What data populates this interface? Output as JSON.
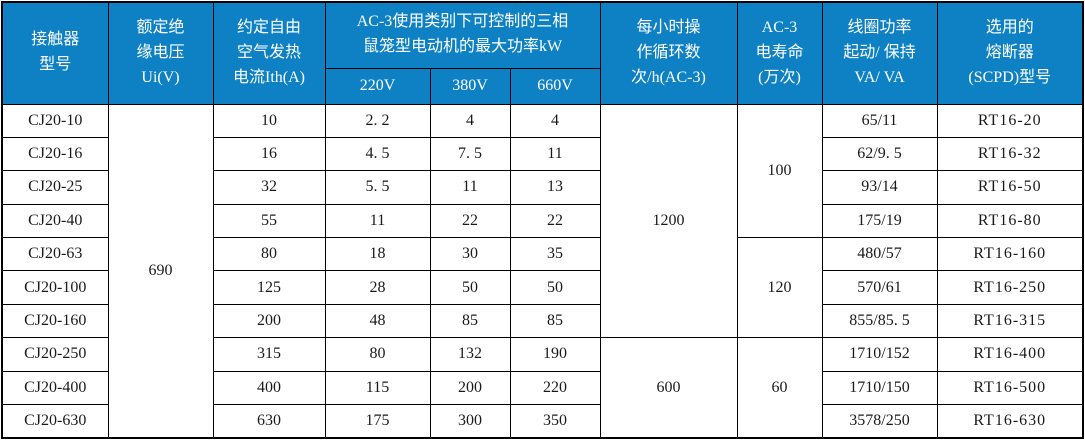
{
  "colors": {
    "header_bg": "#0e81c4",
    "header_text": "#ffffff",
    "grid_line": "#000000",
    "body_text": "#1a1a1a"
  },
  "table": {
    "columns": {
      "model": {
        "label": "接触器\n型号"
      },
      "ui": {
        "label": "额定绝\n缘电压\nUi(V)"
      },
      "ith": {
        "label": "约定自由\n空气发热\n电流Ith(A)"
      },
      "power_group": {
        "label": "AC-3使用类别下可控制的三相\n鼠笼型电动机的最大功率kW",
        "sub": [
          "220V",
          "380V",
          "660V"
        ]
      },
      "cycles": {
        "label": "每小时操\n作循环数\n次/h(AC-3)"
      },
      "life": {
        "label": "AC-3\n电寿命\n(万次)"
      },
      "coil": {
        "label": "线圈功率\n起动/ 保持\nVA/ VA"
      },
      "fuse": {
        "label": "选用的\n熔断器\n(SCPD)型号"
      }
    },
    "rows": [
      {
        "model": "CJ20-10",
        "ith": "10",
        "p220": "2. 2",
        "p380": "4",
        "p660": "4",
        "coil": "65/11",
        "fuse": "RT16-20"
      },
      {
        "model": "CJ20-16",
        "ith": "16",
        "p220": "4. 5",
        "p380": "7. 5",
        "p660": "11",
        "coil": "62/9. 5",
        "fuse": "RT16-32"
      },
      {
        "model": "CJ20-25",
        "ith": "32",
        "p220": "5. 5",
        "p380": "11",
        "p660": "13",
        "coil": "93/14",
        "fuse": "RT16-50"
      },
      {
        "model": "CJ20-40",
        "ith": "55",
        "p220": "11",
        "p380": "22",
        "p660": "22",
        "coil": "175/19",
        "fuse": "RT16-80"
      },
      {
        "model": "CJ20-63",
        "ith": "80",
        "p220": "18",
        "p380": "30",
        "p660": "35",
        "coil": "480/57",
        "fuse": "RT16-160"
      },
      {
        "model": "CJ20-100",
        "ith": "125",
        "p220": "28",
        "p380": "50",
        "p660": "50",
        "coil": "570/61",
        "fuse": "RT16-250"
      },
      {
        "model": "CJ20-160",
        "ith": "200",
        "p220": "48",
        "p380": "85",
        "p660": "85",
        "coil": "855/85. 5",
        "fuse": "RT16-315"
      },
      {
        "model": "CJ20-250",
        "ith": "315",
        "p220": "80",
        "p380": "132",
        "p660": "190",
        "coil": "1710/152",
        "fuse": "RT16-400"
      },
      {
        "model": "CJ20-400",
        "ith": "400",
        "p220": "115",
        "p380": "200",
        "p660": "220",
        "coil": "1710/150",
        "fuse": "RT16-500"
      },
      {
        "model": "CJ20-630",
        "ith": "630",
        "p220": "175",
        "p380": "300",
        "p660": "350",
        "coil": "3578/250",
        "fuse": "RT16-630"
      }
    ],
    "merged": {
      "ui": [
        {
          "start": 0,
          "span": 10,
          "value": "690"
        }
      ],
      "cycles": [
        {
          "start": 0,
          "span": 7,
          "value": "1200"
        },
        {
          "start": 7,
          "span": 3,
          "value": "600"
        }
      ],
      "life": [
        {
          "start": 0,
          "span": 4,
          "value": "100"
        },
        {
          "start": 4,
          "span": 3,
          "value": "120"
        },
        {
          "start": 7,
          "span": 3,
          "value": "60"
        }
      ]
    }
  }
}
